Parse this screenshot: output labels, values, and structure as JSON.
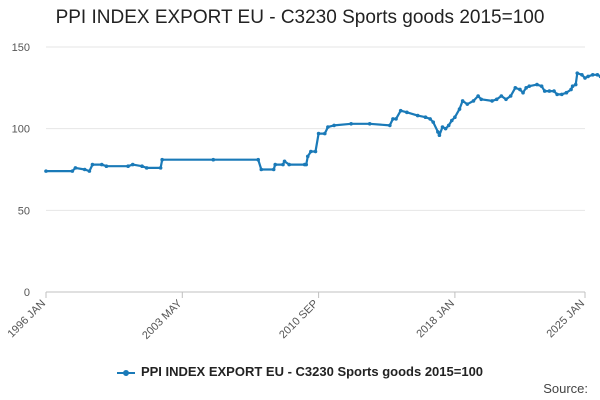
{
  "source_label": "Source:",
  "chart_data": {
    "type": "line",
    "title": "PPI INDEX EXPORT EU - C3230 Sports goods 2015=100",
    "xlabel": "",
    "ylabel": "",
    "ylim": [
      0,
      150
    ],
    "yticks": [
      0,
      50,
      100,
      150
    ],
    "xticks": [
      "1996 JAN",
      "2003 MAY",
      "2010 SEP",
      "2018 JAN",
      "2025 JAN"
    ],
    "grid": true,
    "legend_position": "bottom",
    "color": "#1a7ab8",
    "series": [
      {
        "name": "PPI INDEX EXPORT EU - C3230 Sports goods 2015=100",
        "points": [
          [
            "1996-01",
            74
          ],
          [
            "1997-06",
            74
          ],
          [
            "1997-08",
            76
          ],
          [
            "1998-02",
            75
          ],
          [
            "1998-05",
            74
          ],
          [
            "1998-07",
            78
          ],
          [
            "1999-01",
            78
          ],
          [
            "1999-04",
            77
          ],
          [
            "2000-06",
            77
          ],
          [
            "2000-09",
            78
          ],
          [
            "2001-03",
            77
          ],
          [
            "2001-06",
            76
          ],
          [
            "2002-03",
            76
          ],
          [
            "2002-04",
            81
          ],
          [
            "2005-01",
            81
          ],
          [
            "2007-06",
            81
          ],
          [
            "2007-08",
            75
          ],
          [
            "2008-04",
            75
          ],
          [
            "2008-05",
            78
          ],
          [
            "2008-10",
            78
          ],
          [
            "2008-11",
            80
          ],
          [
            "2009-02",
            78
          ],
          [
            "2009-12",
            78
          ],
          [
            "2010-01",
            78
          ],
          [
            "2010-02",
            83
          ],
          [
            "2010-04",
            86
          ],
          [
            "2010-07",
            86
          ],
          [
            "2010-09",
            97
          ],
          [
            "2011-01",
            97
          ],
          [
            "2011-03",
            101
          ],
          [
            "2011-07",
            102
          ],
          [
            "2012-06",
            103
          ],
          [
            "2013-06",
            103
          ],
          [
            "2014-07",
            102
          ],
          [
            "2014-09",
            106
          ],
          [
            "2014-11",
            106
          ],
          [
            "2015-02",
            111
          ],
          [
            "2015-06",
            110
          ],
          [
            "2016-01",
            108
          ],
          [
            "2016-06",
            107
          ],
          [
            "2016-09",
            106
          ],
          [
            "2016-11",
            104
          ],
          [
            "2017-02",
            98
          ],
          [
            "2017-03",
            96
          ],
          [
            "2017-05",
            101
          ],
          [
            "2017-07",
            100
          ],
          [
            "2017-09",
            102
          ],
          [
            "2017-11",
            105
          ],
          [
            "2018-01",
            107
          ],
          [
            "2018-04",
            112
          ],
          [
            "2018-06",
            117
          ],
          [
            "2018-09",
            115
          ],
          [
            "2019-01",
            117
          ],
          [
            "2019-04",
            120
          ],
          [
            "2019-06",
            118
          ],
          [
            "2020-01",
            117
          ],
          [
            "2020-04",
            118
          ],
          [
            "2020-07",
            120
          ],
          [
            "2020-10",
            118
          ],
          [
            "2021-01",
            120
          ],
          [
            "2021-04",
            125
          ],
          [
            "2021-07",
            124
          ],
          [
            "2021-09",
            122
          ],
          [
            "2021-11",
            125
          ],
          [
            "2022-01",
            126
          ],
          [
            "2022-06",
            127
          ],
          [
            "2022-09",
            126
          ],
          [
            "2022-11",
            123
          ],
          [
            "2023-02",
            123
          ],
          [
            "2023-05",
            123
          ],
          [
            "2023-07",
            121
          ],
          [
            "2023-10",
            121
          ],
          [
            "2024-01",
            122
          ],
          [
            "2024-04",
            124
          ],
          [
            "2024-05",
            126
          ],
          [
            "2024-07",
            127
          ],
          [
            "2024-08",
            134
          ],
          [
            "2024-11",
            133
          ],
          [
            "2025-01",
            131
          ],
          [
            "2025-03",
            132
          ],
          [
            "2025-06",
            133
          ],
          [
            "2025-09",
            133
          ],
          [
            "2025-11",
            132
          ],
          [
            "2026-01",
            131
          ]
        ]
      }
    ]
  }
}
